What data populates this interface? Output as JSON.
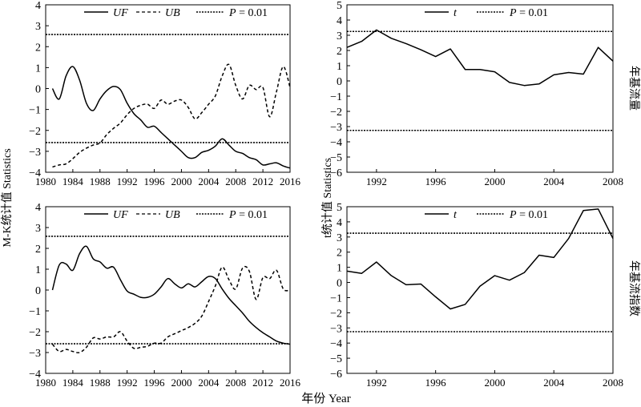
{
  "figure": {
    "left_ylabel": "M-K统计值  Statistics",
    "right_ylabel": "t统计值  Statistics",
    "bottom_xlabel": "年份  Year",
    "row_labels": [
      "年基流量",
      "年基流指数"
    ]
  },
  "chart_data": [
    {
      "type": "line",
      "panel": "top-left",
      "xlim": [
        1980,
        2016
      ],
      "ylim": [
        -4,
        4
      ],
      "xticks": [
        1980,
        1984,
        1988,
        1992,
        1996,
        2000,
        2004,
        2008,
        2012,
        2016
      ],
      "yticks": [
        -4,
        -3,
        -2,
        -1,
        0,
        1,
        2,
        3,
        4
      ],
      "legend": [
        "UF",
        "UB",
        "P = 0.01"
      ],
      "thresholds": [
        2.58,
        -2.58
      ],
      "series": [
        {
          "name": "UF",
          "style": "solid",
          "x": [
            1981,
            1982,
            1983,
            1984,
            1985,
            1986,
            1987,
            1988,
            1989,
            1990,
            1991,
            1992,
            1993,
            1994,
            1995,
            1996,
            1997,
            1998,
            1999,
            2000,
            2001,
            2002,
            2003,
            2004,
            2005,
            2006,
            2007,
            2008,
            2009,
            2010,
            2011,
            2012,
            2013,
            2014,
            2015,
            2016
          ],
          "y": [
            0,
            -0.5,
            0.6,
            1.05,
            0.4,
            -0.7,
            -1.05,
            -0.5,
            -0.1,
            0.1,
            -0.05,
            -0.7,
            -1.2,
            -1.5,
            -1.85,
            -1.8,
            -2.1,
            -2.4,
            -2.7,
            -3.0,
            -3.3,
            -3.3,
            -3.05,
            -2.95,
            -2.75,
            -2.4,
            -2.7,
            -3.0,
            -3.1,
            -3.3,
            -3.4,
            -3.65,
            -3.6,
            -3.55,
            -3.7,
            -3.8
          ]
        },
        {
          "name": "UB",
          "style": "dashed",
          "x": [
            1981,
            1982,
            1983,
            1984,
            1985,
            1986,
            1987,
            1988,
            1989,
            1990,
            1991,
            1992,
            1993,
            1994,
            1995,
            1996,
            1997,
            1998,
            1999,
            2000,
            2001,
            2002,
            2003,
            2004,
            2005,
            2006,
            2007,
            2008,
            2009,
            2010,
            2011,
            2012,
            2013,
            2014,
            2015,
            2016
          ],
          "y": [
            -3.75,
            -3.65,
            -3.6,
            -3.35,
            -3.05,
            -2.85,
            -2.7,
            -2.6,
            -2.2,
            -1.9,
            -1.65,
            -1.25,
            -0.95,
            -0.8,
            -0.75,
            -0.95,
            -0.55,
            -0.75,
            -0.6,
            -0.55,
            -0.9,
            -1.45,
            -1.15,
            -0.75,
            -0.35,
            0.6,
            1.15,
            0.15,
            -0.5,
            0.15,
            -0.05,
            0.05,
            -1.35,
            -0.15,
            1.05,
            0.05
          ]
        }
      ]
    },
    {
      "type": "line",
      "panel": "top-right",
      "xlim": [
        1990,
        2008
      ],
      "ylim": [
        -6,
        5
      ],
      "xticks": [
        1992,
        1996,
        2000,
        2004,
        2008
      ],
      "yticks": [
        -6,
        -5,
        -4,
        -3,
        -2,
        -1,
        0,
        1,
        2,
        3,
        4,
        5
      ],
      "legend": [
        "t",
        "P = 0.01"
      ],
      "thresholds": [
        3.25,
        -3.25
      ],
      "series": [
        {
          "name": "t",
          "style": "solid",
          "x": [
            1990,
            1991,
            1992,
            1993,
            1994,
            1995,
            1996,
            1997,
            1998,
            1999,
            2000,
            2001,
            2002,
            2003,
            2004,
            2005,
            2006,
            2007,
            2008
          ],
          "y": [
            2.2,
            2.6,
            3.35,
            2.8,
            2.45,
            2.05,
            1.6,
            2.1,
            0.75,
            0.75,
            0.6,
            -0.1,
            -0.3,
            -0.2,
            0.4,
            0.55,
            0.45,
            2.2,
            1.3
          ]
        }
      ]
    },
    {
      "type": "line",
      "panel": "bottom-left",
      "xlim": [
        1980,
        2016
      ],
      "ylim": [
        -4,
        4
      ],
      "xticks": [
        1980,
        1984,
        1988,
        1992,
        1996,
        2000,
        2004,
        2008,
        2012,
        2016
      ],
      "yticks": [
        -4,
        -3,
        -2,
        -1,
        0,
        1,
        2,
        3,
        4
      ],
      "legend": [
        "UF",
        "UB",
        "P = 0.01"
      ],
      "thresholds": [
        2.58,
        -2.58
      ],
      "series": [
        {
          "name": "UF",
          "style": "solid",
          "x": [
            1981,
            1982,
            1983,
            1984,
            1985,
            1986,
            1987,
            1988,
            1989,
            1990,
            1991,
            1992,
            1993,
            1994,
            1995,
            1996,
            1997,
            1998,
            1999,
            2000,
            2001,
            2002,
            2003,
            2004,
            2005,
            2006,
            2007,
            2008,
            2009,
            2010,
            2011,
            2012,
            2013,
            2014,
            2015,
            2016
          ],
          "y": [
            0,
            1.2,
            1.25,
            0.95,
            1.75,
            2.1,
            1.5,
            1.35,
            1.05,
            1.1,
            0.5,
            -0.05,
            -0.2,
            -0.35,
            -0.35,
            -0.2,
            0.15,
            0.55,
            0.3,
            0.1,
            0.3,
            0.15,
            0.4,
            0.65,
            0.55,
            0.05,
            -0.4,
            -0.75,
            -1.1,
            -1.5,
            -1.8,
            -2.05,
            -2.25,
            -2.45,
            -2.55,
            -2.6
          ]
        },
        {
          "name": "UB",
          "style": "dashed",
          "x": [
            1981,
            1982,
            1983,
            1984,
            1985,
            1986,
            1987,
            1988,
            1989,
            1990,
            1991,
            1992,
            1993,
            1994,
            1995,
            1996,
            1997,
            1998,
            1999,
            2000,
            2001,
            2002,
            2003,
            2004,
            2005,
            2006,
            2007,
            2008,
            2009,
            2010,
            2011,
            2012,
            2013,
            2014,
            2015,
            2016
          ],
          "y": [
            -2.6,
            -2.95,
            -2.85,
            -2.95,
            -3.0,
            -2.75,
            -2.3,
            -2.35,
            -2.25,
            -2.25,
            -2.0,
            -2.45,
            -2.8,
            -2.75,
            -2.7,
            -2.55,
            -2.55,
            -2.25,
            -2.1,
            -1.95,
            -1.8,
            -1.6,
            -1.25,
            -0.55,
            0.2,
            1.1,
            0.5,
            0.05,
            1.05,
            0.9,
            -0.45,
            0.6,
            0.55,
            0.95,
            0.05,
            0.0
          ]
        }
      ]
    },
    {
      "type": "line",
      "panel": "bottom-right",
      "xlim": [
        1990,
        2008
      ],
      "ylim": [
        -6,
        5
      ],
      "xticks": [
        1992,
        1996,
        2000,
        2004,
        2008
      ],
      "yticks": [
        -6,
        -5,
        -4,
        -3,
        -2,
        -1,
        0,
        1,
        2,
        3,
        4,
        5
      ],
      "legend": [
        "t",
        "P = 0.01"
      ],
      "thresholds": [
        3.25,
        -3.25
      ],
      "series": [
        {
          "name": "t",
          "style": "solid",
          "x": [
            1990,
            1991,
            1992,
            1993,
            1994,
            1995,
            1996,
            1997,
            1998,
            1999,
            2000,
            2001,
            2002,
            2003,
            2004,
            2005,
            2006,
            2007,
            2008
          ],
          "y": [
            0.75,
            0.6,
            1.35,
            0.45,
            -0.15,
            -0.1,
            -0.95,
            -1.75,
            -1.45,
            -0.25,
            0.45,
            0.15,
            0.65,
            1.8,
            1.65,
            2.9,
            4.75,
            4.85,
            2.9
          ]
        }
      ]
    }
  ]
}
